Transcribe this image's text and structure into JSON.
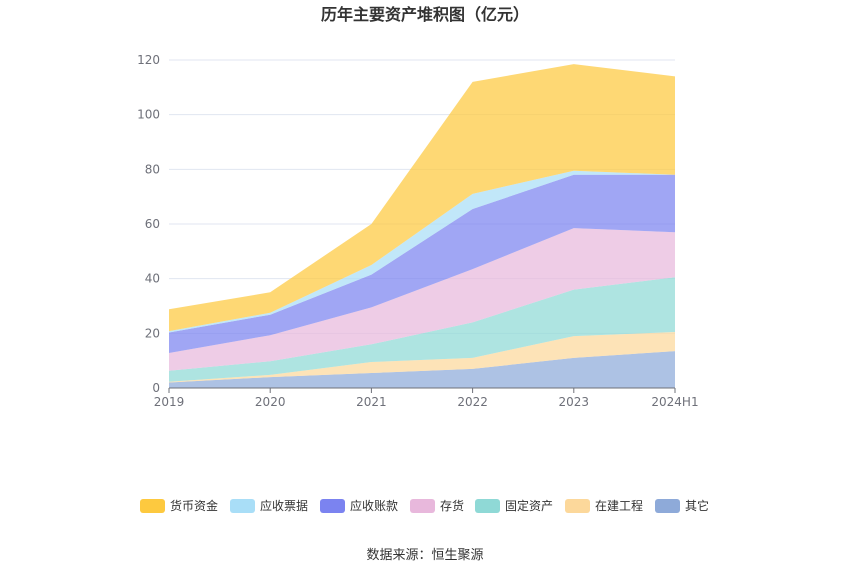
{
  "chart_data": {
    "type": "area",
    "stacked": true,
    "title": "历年主要资产堆积图（亿元）",
    "categories": [
      "2019",
      "2020",
      "2021",
      "2022",
      "2023",
      "2024H1"
    ],
    "y_ticks": [
      "0",
      "20",
      "40",
      "60",
      "80",
      "100",
      "120"
    ],
    "ylim": [
      0,
      120
    ],
    "grid": true,
    "legend_position": "bottom",
    "series": [
      {
        "name": "其它",
        "color": "#8eaad9",
        "values": [
          2.0,
          4.0,
          5.5,
          7.0,
          11.0,
          13.5
        ]
      },
      {
        "name": "在建工程",
        "color": "#fcd89b",
        "values": [
          0.3,
          0.8,
          4.0,
          4.0,
          8.0,
          7.0
        ]
      },
      {
        "name": "固定资产",
        "color": "#8fd9d6",
        "values": [
          4.0,
          5.0,
          6.5,
          13.0,
          17.0,
          20.0
        ]
      },
      {
        "name": "存货",
        "color": "#e8b8dc",
        "values": [
          6.5,
          9.5,
          13.5,
          19.5,
          22.5,
          16.5
        ]
      },
      {
        "name": "应收账款",
        "color": "#7b83f0",
        "values": [
          7.5,
          7.5,
          12.0,
          22.0,
          19.5,
          21.0
        ]
      },
      {
        "name": "应收票据",
        "color": "#a9def7",
        "values": [
          0.5,
          0.7,
          3.5,
          5.5,
          1.5,
          0.0
        ]
      },
      {
        "name": "货币资金",
        "color": "#fdc93f",
        "values": [
          8.0,
          7.5,
          15.0,
          41.0,
          39.0,
          36.0
        ]
      }
    ],
    "legend_order": [
      "货币资金",
      "应收票据",
      "应收账款",
      "存货",
      "固定资产",
      "在建工程",
      "其它"
    ]
  },
  "source": "数据来源：恒生聚源"
}
